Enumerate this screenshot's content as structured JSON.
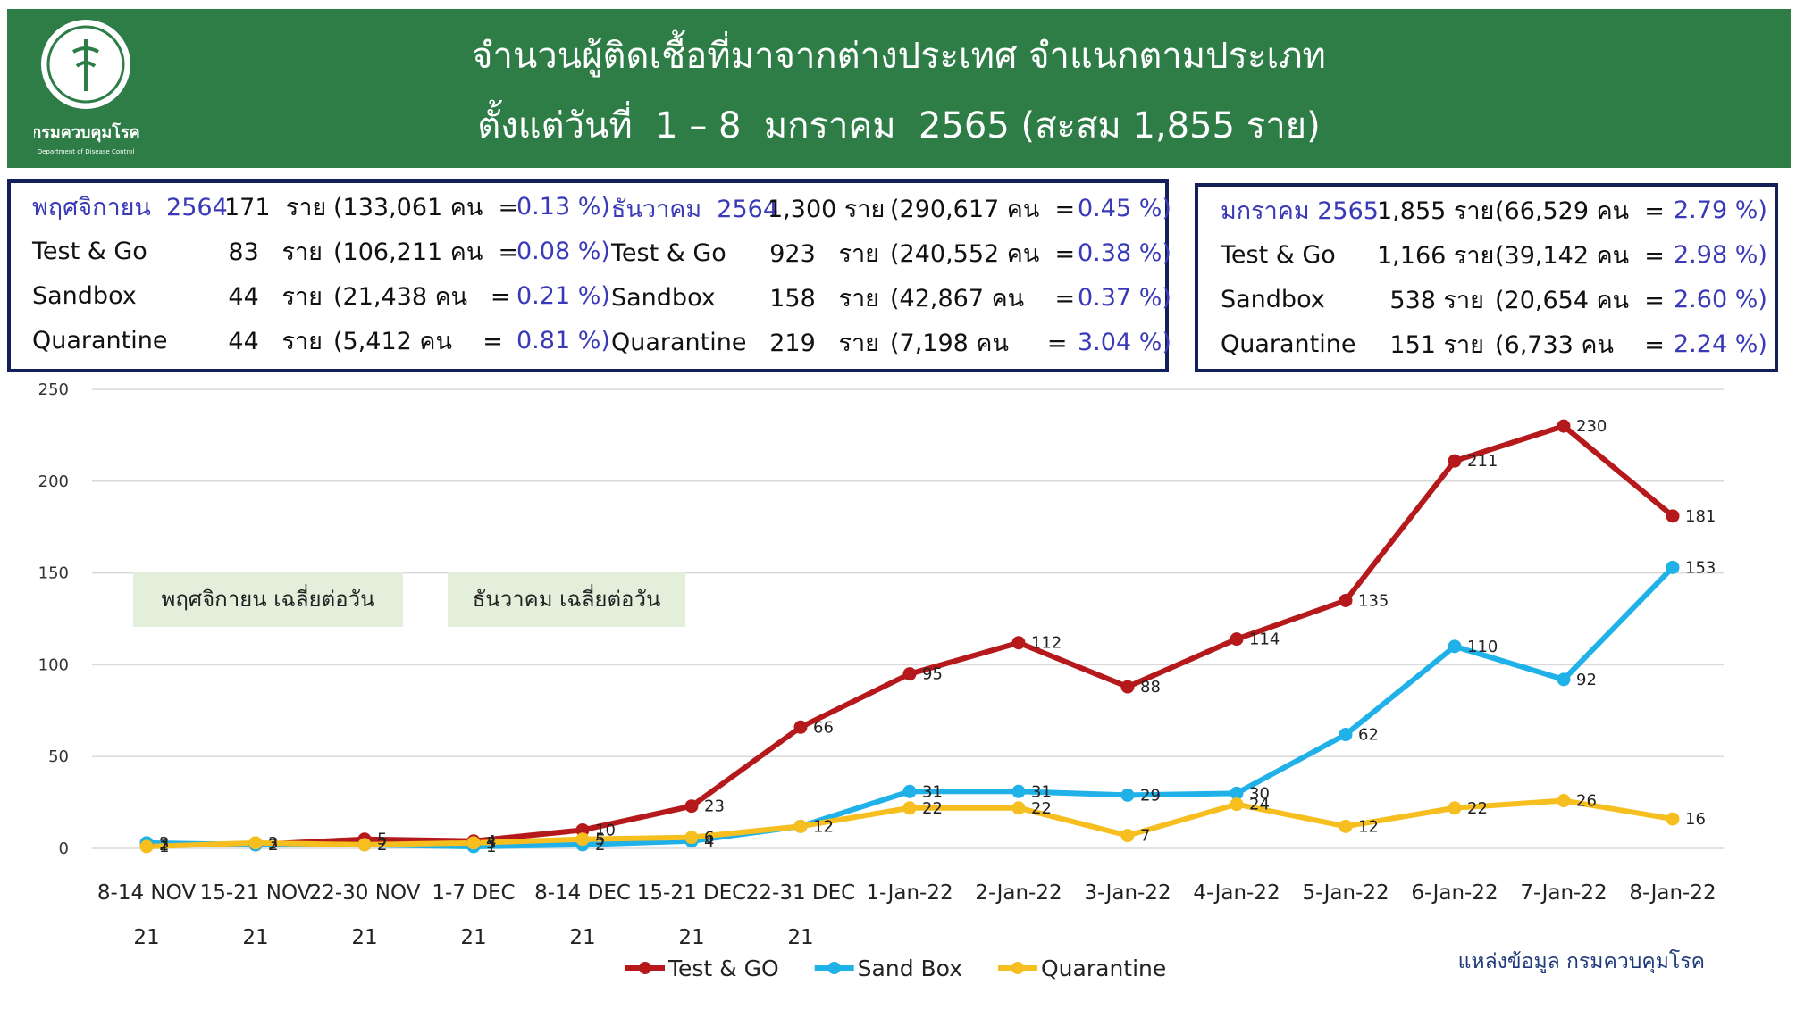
{
  "header": {
    "title_line1": "จำนวนผู้ติดเชื้อที่มาจากต่างประเทศ จำแนกตามประเภท",
    "title_line2": "ตั้งแต่วันที่  1 – 8  มกราคม  2565 (สะสม 1,855 ราย)",
    "logo_text": "กรมควบคุมโรค",
    "logo_subtext": "Department of Disease Control"
  },
  "summary": [
    {
      "rows": [
        {
          "label": "พฤศจิกายน  2564",
          "count": "171  ราย",
          "base": "(133,061 คน  =",
          "pct": "0.13 %)"
        },
        {
          "label": "Test & Go",
          "count": "83   ราย",
          "base": "(106,211 คน  =",
          "pct": "0.08 %)"
        },
        {
          "label": "Sandbox",
          "count": "44   ราย",
          "base": "(21,438 คน   =",
          "pct": "0.21 %)"
        },
        {
          "label": "Quarantine",
          "count": "44   ราย",
          "base": "(5,412 คน    =",
          "pct": "0.81 %)"
        }
      ]
    },
    {
      "rows": [
        {
          "label": "ธันวาคม  2564",
          "count": "1,300 ราย",
          "base": "(290,617 คน  =",
          "pct": "0.45 %)"
        },
        {
          "label": "Test & Go",
          "count": "923   ราย",
          "base": "(240,552 คน  =",
          "pct": "0.38 %)"
        },
        {
          "label": "Sandbox",
          "count": "158   ราย",
          "base": "(42,867 คน    =",
          "pct": "0.37 %)"
        },
        {
          "label": "Quarantine",
          "count": "219   ราย",
          "base": "(7,198 คน     =",
          "pct": "3.04 %)"
        }
      ]
    },
    {
      "rows": [
        {
          "label": "มกราคม 2565",
          "count": "1,855 ราย",
          "base": "(66,529 คน  =",
          "pct": "2.79 %)"
        },
        {
          "label": "Test & Go",
          "count": "1,166 ราย",
          "base": "(39,142 คน  =",
          "pct": "2.98 %)"
        },
        {
          "label": "Sandbox",
          "count": "538 ราย",
          "base": "(20,654 คน  =",
          "pct": "2.60 %)"
        },
        {
          "label": "Quarantine",
          "count": "151 ราย",
          "base": "(6,733 คน    =",
          "pct": "2.24 %)"
        }
      ]
    }
  ],
  "chart_data": {
    "type": "line",
    "categories": [
      "8-14 NOV 21",
      "15-21 NOV 21",
      "22-30 NOV 21",
      "1-7 DEC 21",
      "8-14 DEC 21",
      "15-21 DEC 21",
      "22-31 DEC 21",
      "1-Jan-22",
      "2-Jan-22",
      "3-Jan-22",
      "4-Jan-22",
      "5-Jan-22",
      "6-Jan-22",
      "7-Jan-22",
      "8-Jan-22"
    ],
    "series": [
      {
        "name": "Test & GO",
        "color": "#b5191c",
        "values": [
          2,
          2,
          5,
          4,
          10,
          23,
          66,
          95,
          112,
          88,
          114,
          135,
          211,
          230,
          181
        ]
      },
      {
        "name": "Sand Box",
        "color": "#1fb1e8",
        "values": [
          3,
          2,
          2,
          1,
          2,
          4,
          12,
          31,
          31,
          29,
          30,
          62,
          110,
          92,
          153
        ]
      },
      {
        "name": "Quarantine",
        "color": "#f6be1e",
        "values": [
          1,
          3,
          2,
          3,
          5,
          6,
          12,
          22,
          22,
          7,
          24,
          12,
          22,
          26,
          16
        ]
      }
    ],
    "ylim": [
      0,
      250
    ],
    "yticks": [
      0,
      50,
      100,
      150,
      200,
      250
    ],
    "grid": true,
    "annotations": [
      "พฤศจิกายน  เฉลี่ยต่อวัน",
      "ธันวาคม  เฉลี่ยต่อวัน"
    ],
    "source": "แหล่งข้อมูล กรมควบคุมโรค"
  }
}
